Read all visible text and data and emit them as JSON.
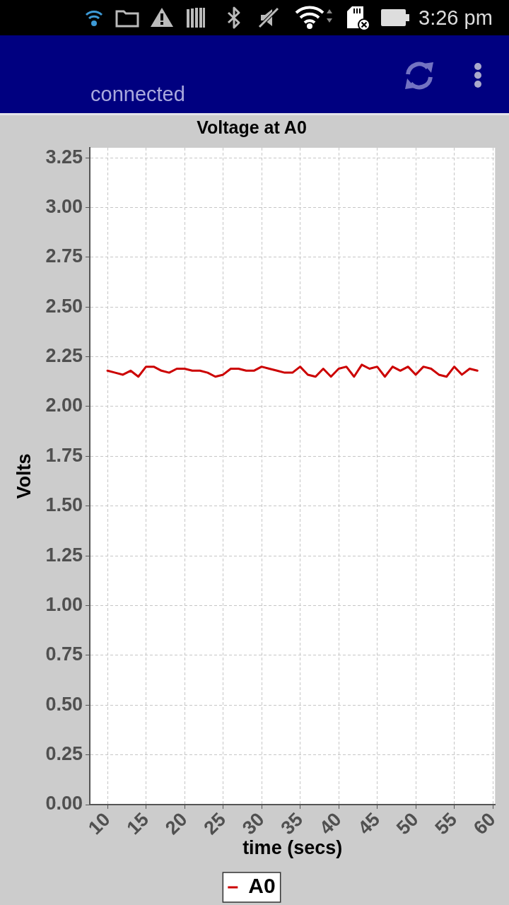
{
  "chart_data": {
    "type": "line",
    "title": "Voltage at A0",
    "xlabel": "time (secs)",
    "ylabel": "Volts",
    "x": [
      10,
      11,
      12,
      13,
      14,
      15,
      16,
      17,
      18,
      19,
      20,
      21,
      22,
      23,
      24,
      25,
      26,
      27,
      28,
      29,
      30,
      31,
      32,
      33,
      34,
      35,
      36,
      37,
      38,
      39,
      40,
      41,
      42,
      43,
      44,
      45,
      46,
      47,
      48,
      49,
      50,
      51,
      52,
      53,
      54,
      55,
      56,
      57,
      58
    ],
    "series": [
      {
        "name": "A0",
        "color": "#cc0000",
        "values": [
          2.18,
          2.17,
          2.16,
          2.18,
          2.15,
          2.2,
          2.2,
          2.18,
          2.17,
          2.19,
          2.19,
          2.18,
          2.18,
          2.17,
          2.15,
          2.16,
          2.19,
          2.19,
          2.18,
          2.18,
          2.2,
          2.19,
          2.18,
          2.17,
          2.17,
          2.2,
          2.16,
          2.15,
          2.19,
          2.15,
          2.19,
          2.2,
          2.15,
          2.21,
          2.19,
          2.2,
          2.15,
          2.2,
          2.18,
          2.2,
          2.16,
          2.2,
          2.19,
          2.16,
          2.15,
          2.2,
          2.16,
          2.19,
          2.18
        ]
      }
    ],
    "xlim": [
      7.7,
      60.3
    ],
    "ylim": [
      0,
      3.3
    ],
    "xticks": [
      10,
      15,
      20,
      25,
      30,
      35,
      40,
      45,
      50,
      55,
      60
    ],
    "yticks": [
      {
        "value": 0,
        "label": "0.00"
      },
      0.25,
      {
        "value": 0.5,
        "label": "0.50"
      },
      0.75,
      {
        "value": 1,
        "label": "1.00"
      },
      1.25,
      {
        "value": 1.5,
        "label": "1.50"
      },
      1.75,
      {
        "value": 2,
        "label": "2.00"
      },
      2.25,
      {
        "value": 2.5,
        "label": "2.50"
      },
      2.75,
      {
        "value": 3,
        "label": "3.00"
      },
      3.25
    ],
    "grid": true,
    "legend": "bottom",
    "marker": "none",
    "line_style": "solid",
    "annotations": [
      "connected",
      "3:26 pm"
    ]
  }
}
